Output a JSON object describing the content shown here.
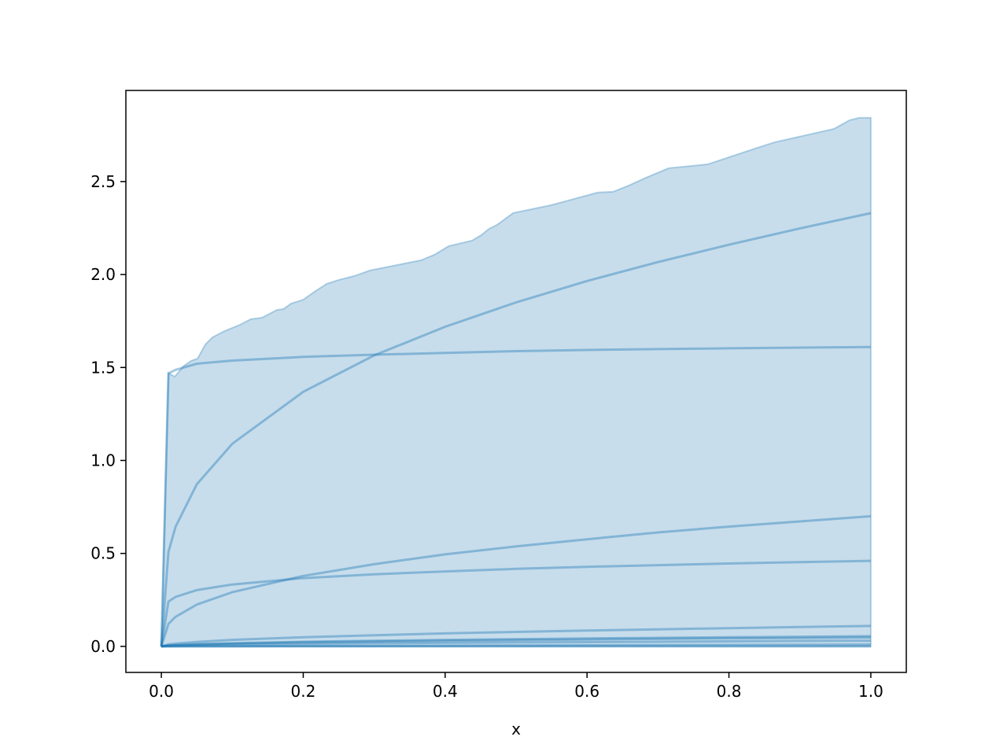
{
  "chart_data": {
    "type": "area",
    "title": "",
    "xlabel": "x",
    "ylabel": "",
    "xlim": [
      -0.05,
      1.05
    ],
    "ylim": [
      -0.14,
      2.99
    ],
    "grid": false,
    "color": "#1f77b4",
    "x_ticks": [
      "0.0",
      "0.2",
      "0.4",
      "0.6",
      "0.8",
      "1.0"
    ],
    "y_ticks": [
      "0.0",
      "0.5",
      "1.0",
      "1.5",
      "2.0",
      "2.5"
    ],
    "band": {
      "lower": 0,
      "upper": [
        [
          0,
          0
        ],
        [
          0.01,
          1.47
        ],
        [
          0.019,
          1.451
        ],
        [
          0.031,
          1.506
        ],
        [
          0.042,
          1.536
        ],
        [
          0.051,
          1.548
        ],
        [
          0.062,
          1.624
        ],
        [
          0.072,
          1.662
        ],
        [
          0.089,
          1.696
        ],
        [
          0.111,
          1.73
        ],
        [
          0.126,
          1.76
        ],
        [
          0.142,
          1.768
        ],
        [
          0.163,
          1.81
        ],
        [
          0.172,
          1.814
        ],
        [
          0.183,
          1.844
        ],
        [
          0.2,
          1.865
        ],
        [
          0.216,
          1.908
        ],
        [
          0.233,
          1.95
        ],
        [
          0.25,
          1.971
        ],
        [
          0.272,
          1.992
        ],
        [
          0.294,
          2.022
        ],
        [
          0.327,
          2.047
        ],
        [
          0.366,
          2.077
        ],
        [
          0.385,
          2.107
        ],
        [
          0.405,
          2.153
        ],
        [
          0.438,
          2.183
        ],
        [
          0.451,
          2.212
        ],
        [
          0.462,
          2.246
        ],
        [
          0.473,
          2.267
        ],
        [
          0.496,
          2.331
        ],
        [
          0.549,
          2.373
        ],
        [
          0.615,
          2.441
        ],
        [
          0.637,
          2.445
        ],
        [
          0.659,
          2.479
        ],
        [
          0.681,
          2.517
        ],
        [
          0.715,
          2.572
        ],
        [
          0.77,
          2.593
        ],
        [
          0.837,
          2.678
        ],
        [
          0.865,
          2.712
        ],
        [
          0.948,
          2.783
        ],
        [
          0.97,
          2.83
        ],
        [
          0.984,
          2.843
        ],
        [
          1.0,
          2.843
        ]
      ]
    },
    "x": [
      0,
      0.01,
      0.02,
      0.05,
      0.1,
      0.2,
      0.3,
      0.4,
      0.5,
      0.6,
      0.7,
      0.8,
      0.9,
      1.0
    ],
    "series": [
      {
        "values": [
          0,
          0.508,
          0.643,
          0.872,
          1.09,
          1.369,
          1.565,
          1.719,
          1.85,
          1.965,
          2.067,
          2.16,
          2.248,
          2.33
        ]
      },
      {
        "values": [
          0,
          1.468,
          1.487,
          1.52,
          1.537,
          1.557,
          1.569,
          1.578,
          1.588,
          1.594,
          1.599,
          1.603,
          1.607,
          1.61
        ]
      },
      {
        "values": [
          0,
          0.121,
          0.159,
          0.225,
          0.292,
          0.379,
          0.442,
          0.495,
          0.538,
          0.576,
          0.613,
          0.644,
          0.672,
          0.7
        ]
      },
      {
        "values": [
          0,
          0.241,
          0.266,
          0.303,
          0.333,
          0.367,
          0.388,
          0.403,
          0.417,
          0.428,
          0.437,
          0.446,
          0.453,
          0.46
        ]
      },
      {
        "values": [
          0,
          0.011,
          0.015,
          0.024,
          0.035,
          0.049,
          0.06,
          0.07,
          0.078,
          0.085,
          0.092,
          0.098,
          0.104,
          0.11
        ]
      },
      {
        "values": [
          0,
          0.005,
          0.007,
          0.012,
          0.017,
          0.025,
          0.03,
          0.035,
          0.039,
          0.043,
          0.046,
          0.049,
          0.052,
          0.055
        ]
      },
      {
        "values": [
          0,
          0.004,
          0.006,
          0.01,
          0.015,
          0.022,
          0.026,
          0.03,
          0.034,
          0.037,
          0.04,
          0.043,
          0.045,
          0.048
        ]
      },
      {
        "values": [
          0,
          0.003,
          0.004,
          0.007,
          0.01,
          0.014,
          0.017,
          0.019,
          0.021,
          0.023,
          0.025,
          0.027,
          0.029,
          0.03
        ]
      },
      {
        "values": [
          0,
          0.0001,
          0.0002,
          0.0005,
          0.001,
          0.002,
          0.003,
          0.004,
          0.005,
          0.006,
          0.007,
          0.008,
          0.009,
          0.01
        ]
      },
      {
        "values": [
          0,
          0,
          0,
          0,
          0,
          0,
          0,
          0,
          0,
          0,
          0,
          0,
          0,
          0
        ]
      }
    ]
  }
}
